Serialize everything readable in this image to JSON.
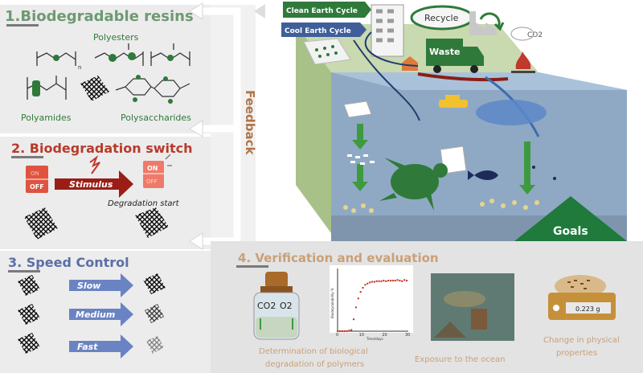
{
  "sections": {
    "resins": {
      "title": "1.Biodegradable resins",
      "polyesters": "Polyesters",
      "polyamides": "Polyamides",
      "polysaccharides": "Polysaccharides",
      "formula_n": "n"
    },
    "switch": {
      "title": "2. Biodegradation switch",
      "on": "ON",
      "off": "OFF",
      "stimulus": "Stimulus",
      "degradation_start": "Degradation start"
    },
    "speed": {
      "title": "3. Speed Control",
      "slow": "Slow",
      "medium": "Medium",
      "fast": "Fast"
    },
    "verification": {
      "title": "4. Verification and evaluation",
      "co2": "CO2",
      "o2": "O2",
      "plot_ylabel": "Biodegradability %",
      "plot_xlabel": "Time/days",
      "plot_xticks": [
        "0",
        "10",
        "20",
        "30"
      ],
      "caption_1a": "Determination of biological",
      "caption_1b": "degradation of polymers",
      "caption_2": "Exposure to the ocean",
      "caption_3a": "Change in physical",
      "caption_3b": "properties",
      "scale_readout": "0.223 g"
    }
  },
  "feedback": "Feedback",
  "scene": {
    "clean_cycle": "Clean Earth Cycle",
    "cool_cycle": "Cool Earth Cycle",
    "recycle": "Recycle",
    "waste": "Waste",
    "co2": "CO2",
    "goals": "Goals"
  },
  "colors": {
    "resins_title": "#6e9a72",
    "switch_title": "#b83a2a",
    "speed_title": "#5a6fa5",
    "verification_title": "#c9a07a",
    "feedback": "#b0754a",
    "green_dark": "#2f7a3a",
    "panel_bg": "#e9e9e9",
    "ocean": "#8fa9c4",
    "goals_green": "#1f7a3c"
  },
  "chart_data": {
    "type": "scatter",
    "title": "",
    "xlabel": "Time/days",
    "ylabel": "Biodegradability %",
    "xlim": [
      0,
      30
    ],
    "ylim": [
      0,
      100
    ],
    "x": [
      0,
      1,
      2,
      3,
      4,
      5,
      6,
      7,
      8,
      9,
      10,
      11,
      12,
      13,
      14,
      15,
      16,
      17,
      18,
      19,
      20,
      21,
      22,
      23,
      24,
      25,
      26,
      27,
      28,
      29,
      30
    ],
    "values": [
      0,
      0,
      0,
      0,
      0,
      1,
      2,
      20,
      40,
      55,
      66,
      73,
      78,
      80,
      82,
      83,
      83,
      84,
      84,
      84,
      85,
      84,
      85,
      85,
      85,
      85,
      86,
      85,
      84,
      86,
      85
    ]
  }
}
